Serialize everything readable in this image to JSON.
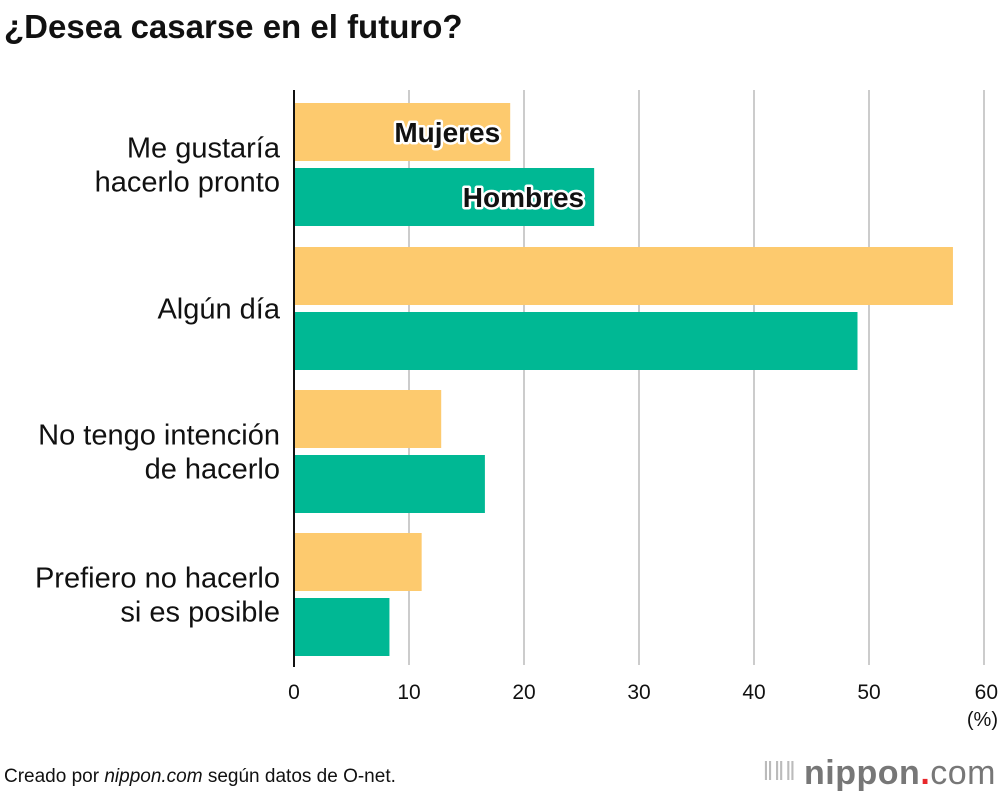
{
  "title": "¿Desea casarse en el futuro?",
  "source": {
    "prefix": "Creado por ",
    "site": "nippon.com",
    "suffix": " según datos de O-net."
  },
  "logo": {
    "text": "nippon.com"
  },
  "chart_data": {
    "type": "bar",
    "orientation": "horizontal",
    "title": "¿Desea casarse en el futuro?",
    "categories": [
      [
        "Me gustaría",
        "hacerlo pronto"
      ],
      [
        "Algún día"
      ],
      [
        "No tengo intención",
        "de hacerlo"
      ],
      [
        "Prefiero no hacerlo",
        "si es posible"
      ]
    ],
    "series": [
      {
        "name": "Mujeres",
        "color": "#fdca6e",
        "values": [
          18.8,
          57.3,
          12.8,
          11.1
        ]
      },
      {
        "name": "Hombres",
        "color": "#00b894",
        "values": [
          26.1,
          49.0,
          16.6,
          8.3
        ]
      }
    ],
    "xlim": [
      0,
      60
    ],
    "xticks": [
      0,
      10,
      20,
      30,
      40,
      50,
      60
    ],
    "xunit": "(%)",
    "grid": true,
    "legend": "inline-labels-on-first-group"
  }
}
